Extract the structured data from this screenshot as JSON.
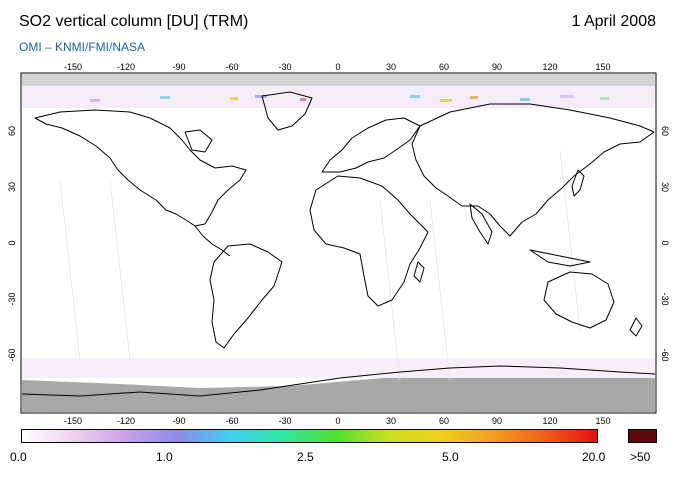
{
  "header": {
    "title": "SO2 vertical column [DU] (TRM)",
    "date": "1 April 2008",
    "credit": "OMI  –  KNMI/FMI/NASA"
  },
  "map": {
    "lon_ticks": [
      "-150",
      "-120",
      "-90",
      "-60",
      "-30",
      "0",
      "30",
      "60",
      "90",
      "120",
      "150"
    ],
    "lat_ticks": [
      "60",
      "30",
      "0",
      "-30",
      "-60"
    ]
  },
  "colorbar": {
    "labels": [
      "0.0",
      "1.0",
      "2.5",
      "5.0",
      "20.0"
    ],
    "overflow_label": ">50",
    "colors": [
      "#ffffff",
      "#f0d0f0",
      "#c8a0e8",
      "#8a8ce8",
      "#40d0f0",
      "#30e8a0",
      "#50e030",
      "#c8e020",
      "#f0d020",
      "#f0a020",
      "#f06018",
      "#e01010"
    ],
    "overflow_color": "#5a0a0a"
  }
}
